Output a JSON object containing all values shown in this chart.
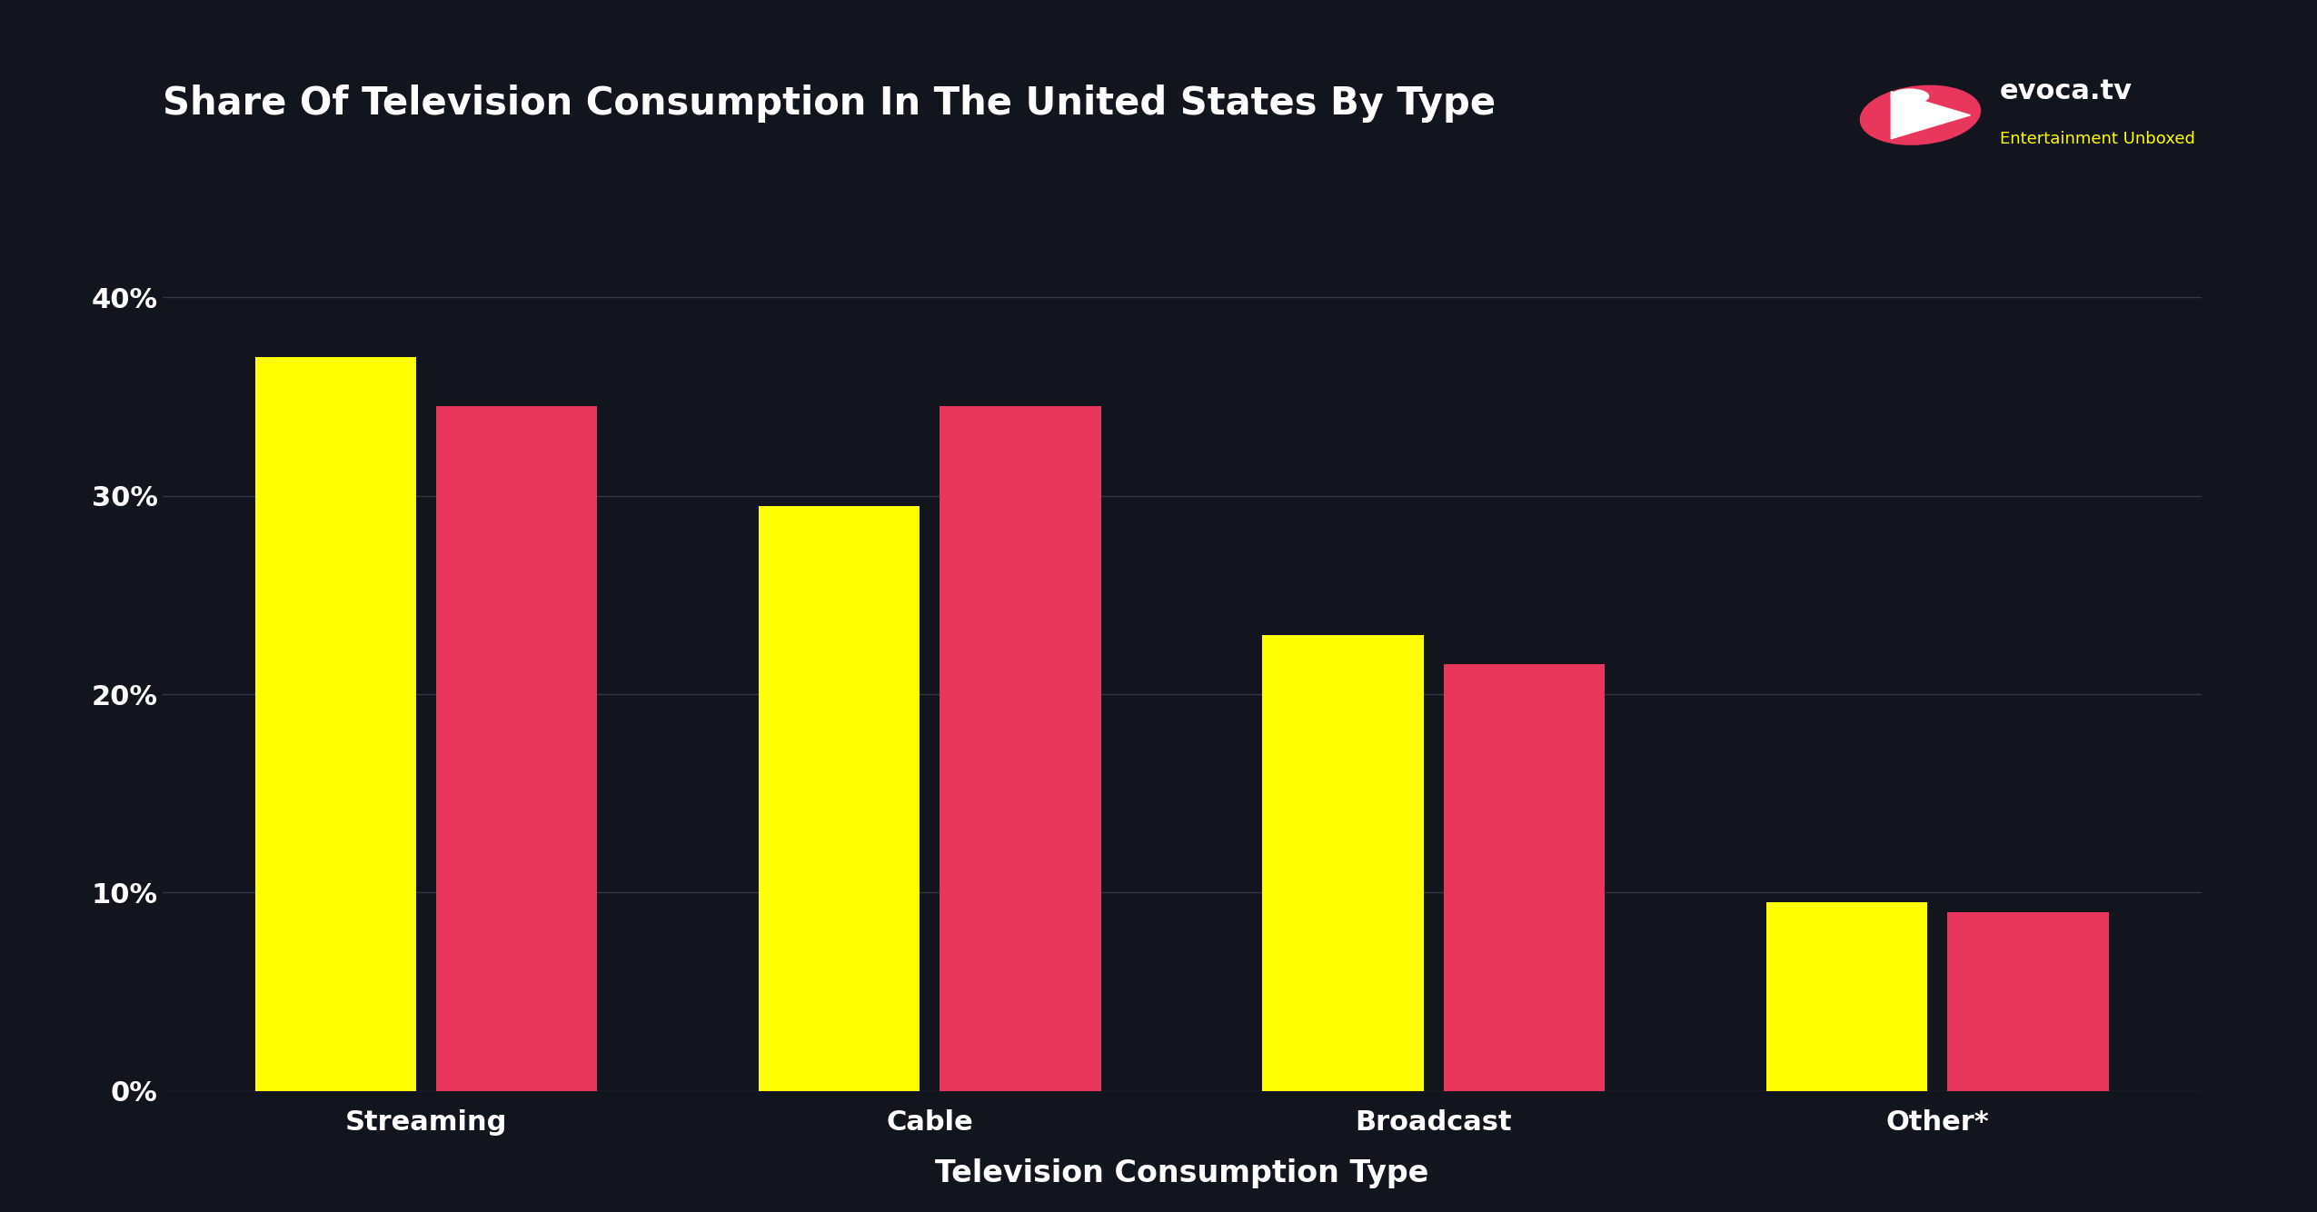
{
  "title": "Share Of Television Consumption In The United States By Type",
  "xlabel": "Television Consumption Type",
  "background_color": "#12151e",
  "bar_color_yellow": "#FFFF00",
  "bar_color_pink": "#E8365D",
  "grid_color": "#333744",
  "text_color": "#ffffff",
  "categories": [
    "Streaming",
    "Cable",
    "Broadcast",
    "Other*"
  ],
  "values_yellow": [
    37.0,
    29.5,
    23.0,
    9.5
  ],
  "values_pink": [
    34.5,
    34.5,
    21.5,
    9.0
  ],
  "yticks": [
    0,
    10,
    20,
    30,
    40
  ],
  "ylim": [
    0,
    44
  ],
  "title_fontsize": 30,
  "axis_label_fontsize": 24,
  "tick_fontsize": 22,
  "logo_text_main": "evoca.tv",
  "logo_text_sub": "Entertainment Unboxed",
  "logo_color_main": "#ffffff",
  "logo_color_sub": "#FFFF00",
  "bar_width": 0.32,
  "bar_gap": 0.04
}
